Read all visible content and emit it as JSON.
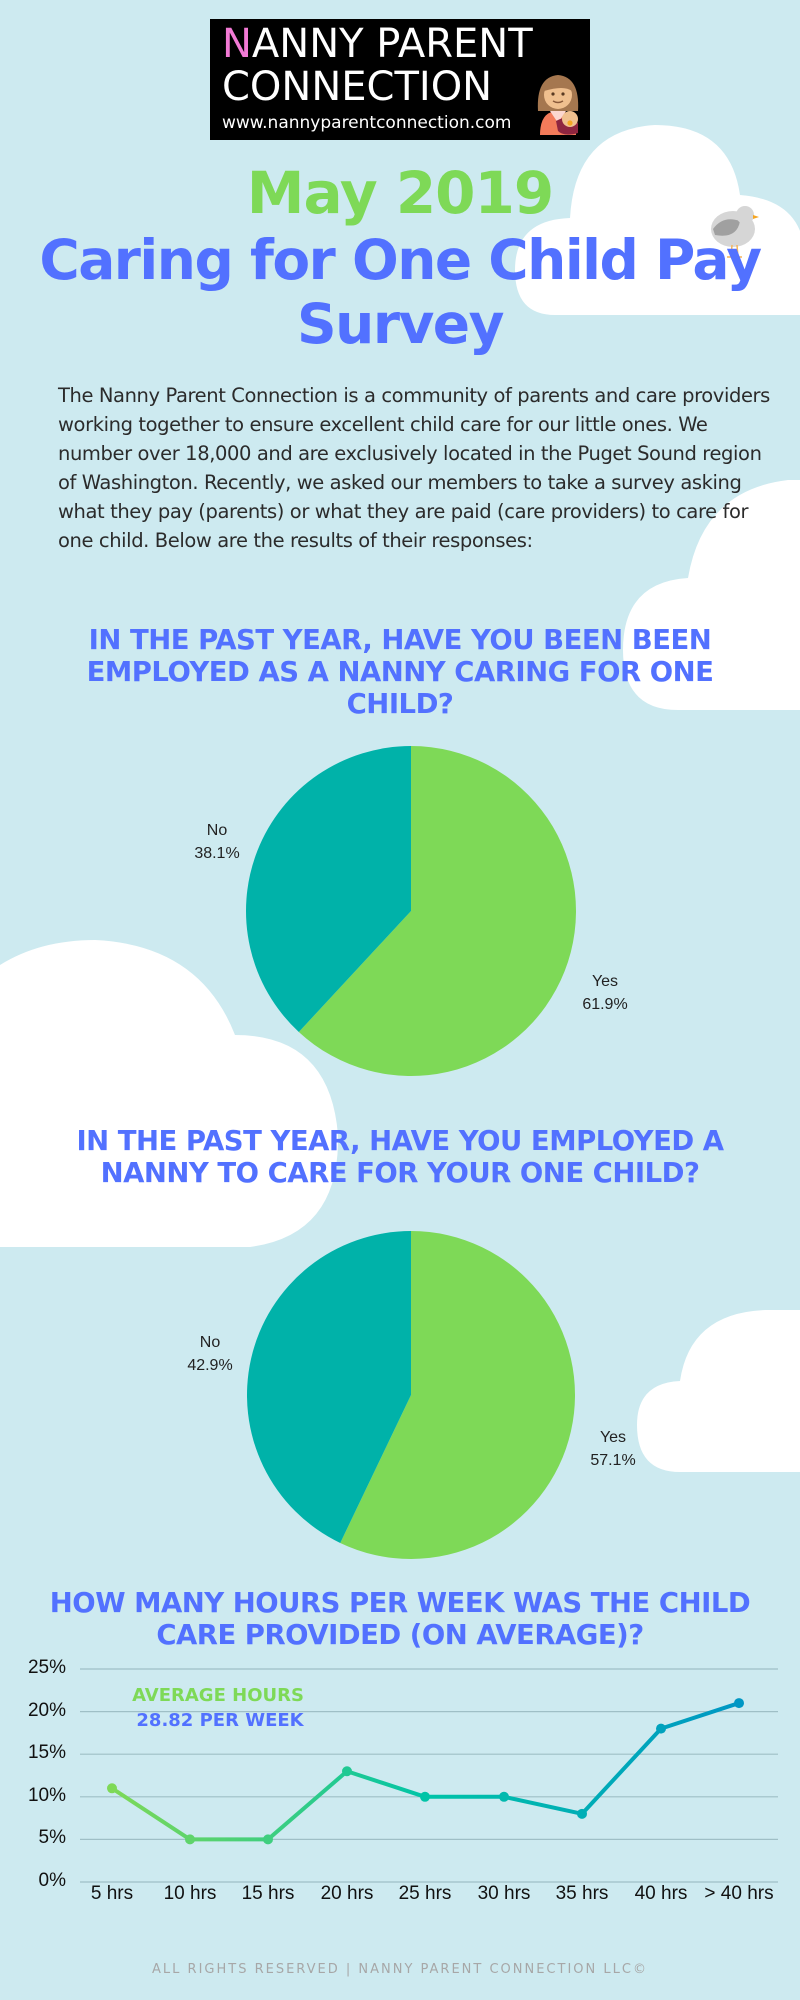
{
  "logo": {
    "line1_accent": "N",
    "line1_rest": "ANNY PARENT",
    "line2": "CONNECTION",
    "url": "www.nannyparentconnection.com",
    "icon": "nanny-with-baby-icon"
  },
  "header": {
    "date": "May 2019",
    "title": "Caring for One Child Pay Survey",
    "decoration_icon": "bird-icon"
  },
  "intro": "The Nanny Parent Connection is a community of parents and care providers working together to ensure excellent child care for our little ones. We number over 18,000 and are exclusively located in the Puget Sound region of Washington. Recently, we asked our members to take a survey asking what they pay (parents) or what they are paid (care providers) to care for one child. Below are the results of their responses:",
  "sections": [
    {
      "heading": "IN THE PAST YEAR, HAVE YOU BEEN BEEN EMPLOYED AS A NANNY CARING FOR ONE CHILD?",
      "slices": [
        {
          "label": "No",
          "value_text": "38.1%"
        },
        {
          "label": "Yes",
          "value_text": "61.9%"
        }
      ]
    },
    {
      "heading": "IN THE PAST YEAR, HAVE YOU EMPLOYED A NANNY TO CARE FOR YOUR ONE CHILD?",
      "slices": [
        {
          "label": "No",
          "value_text": "42.9%"
        },
        {
          "label": "Yes",
          "value_text": "57.1%"
        }
      ]
    },
    {
      "heading": "HOW MANY HOURS PER WEEK WAS THE CHILD CARE PROVIDED (ON AVERAGE)?",
      "average_label": "AVERAGE HOURS",
      "average_value": "28.82 PER WEEK",
      "y_ticks": [
        "25%",
        "20%",
        "15%",
        "10%",
        "5%",
        "0%"
      ],
      "x_ticks": [
        "5 hrs",
        "10 hrs",
        "15 hrs",
        "20 hrs",
        "25 hrs",
        "30 hrs",
        "35 hrs",
        "40 hrs",
        "> 40 hrs"
      ]
    }
  ],
  "footer": "ALL RIGHTS RESERVED | NANNY PARENT CONNECTION LLC©",
  "colors": {
    "background": "#cdeaf0",
    "accent_green": "#7ed957",
    "accent_blue": "#5271ff",
    "pie_no": "#00b2a9",
    "pie_yes": "#7ed957",
    "logo_pink": "#f27ad5"
  },
  "chart_data": [
    {
      "type": "pie",
      "title": "IN THE PAST YEAR, HAVE YOU BEEN BEEN EMPLOYED AS A NANNY CARING FOR ONE CHILD?",
      "categories": [
        "No",
        "Yes"
      ],
      "values": [
        38.1,
        61.9
      ],
      "colors": [
        "#00b2a9",
        "#7ed957"
      ]
    },
    {
      "type": "pie",
      "title": "IN THE PAST YEAR, HAVE YOU EMPLOYED A NANNY TO CARE FOR YOUR ONE CHILD?",
      "categories": [
        "No",
        "Yes"
      ],
      "values": [
        42.9,
        57.1
      ],
      "colors": [
        "#00b2a9",
        "#7ed957"
      ]
    },
    {
      "type": "line",
      "title": "HOW MANY HOURS PER WEEK WAS THE CHILD CARE PROVIDED (ON AVERAGE)?",
      "categories": [
        "5 hrs",
        "10 hrs",
        "15 hrs",
        "20 hrs",
        "25 hrs",
        "30 hrs",
        "35 hrs",
        "40 hrs",
        "> 40 hrs"
      ],
      "values": [
        11,
        5,
        5,
        13,
        10,
        10,
        8,
        18,
        21
      ],
      "xlabel": "",
      "ylabel": "",
      "ylim": [
        0,
        25
      ],
      "y_tick_step": 5,
      "y_format": "percent",
      "grid": true,
      "annotation": "AVERAGE HOURS 28.82 PER WEEK",
      "line_gradient": [
        "#7ed957",
        "#00c4a7",
        "#0097c4"
      ]
    }
  ]
}
